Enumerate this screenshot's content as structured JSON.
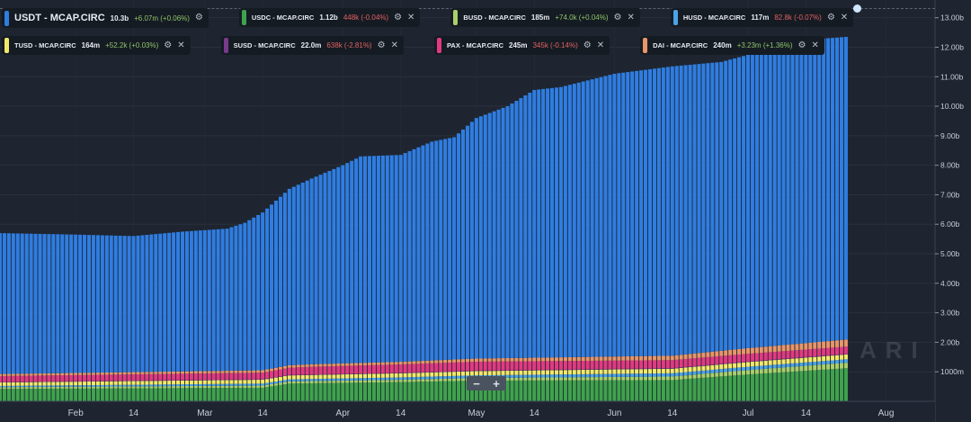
{
  "legend": [
    {
      "name": "USDT - MCAP.CIRC",
      "value": "10.3b",
      "change": "+6.07m (+0.06%)",
      "dir": "up",
      "color": "#2f7de1",
      "main": true
    },
    {
      "name": "USDC - MCAP.CIRC",
      "value": "1.12b",
      "change": "448k (-0.04%)",
      "dir": "down",
      "color": "#3fa34d"
    },
    {
      "name": "BUSD - MCAP.CIRC",
      "value": "185m",
      "change": "+74.0k (+0.04%)",
      "dir": "up",
      "color": "#a8d06b"
    },
    {
      "name": "HUSD - MCAP.CIRC",
      "value": "117m",
      "change": "82.8k (-0.07%)",
      "dir": "down",
      "color": "#4aa3e8"
    },
    {
      "name": "TUSD - MCAP.CIRC",
      "value": "164m",
      "change": "+52.2k (+0.03%)",
      "dir": "up",
      "color": "#f2e86b"
    },
    {
      "name": "SUSD - MCAP.CIRC",
      "value": "22.0m",
      "change": "638k (-2.81%)",
      "dir": "down",
      "color": "#7a3a8c"
    },
    {
      "name": "PAX - MCAP.CIRC",
      "value": "245m",
      "change": "345k (-0.14%)",
      "dir": "down",
      "color": "#e23a82"
    },
    {
      "name": "DAI - MCAP.CIRC",
      "value": "240m",
      "change": "+3.23m (+1.36%)",
      "dir": "up",
      "color": "#e8956a"
    }
  ],
  "icons": {
    "settings": "gear-icon",
    "close": "close-icon"
  },
  "zoom": {
    "minus": "−",
    "plus": "+"
  },
  "watermark": "ARI",
  "chart_data": {
    "type": "bar",
    "stacked": true,
    "x_range": [
      "2020-01-15",
      "2020-08-12"
    ],
    "x_ticks": [
      {
        "date": "2020-02-01",
        "label": "Feb"
      },
      {
        "date": "2020-02-14",
        "label": "14"
      },
      {
        "date": "2020-03-01",
        "label": "Mar"
      },
      {
        "date": "2020-03-14",
        "label": "14"
      },
      {
        "date": "2020-04-01",
        "label": "Apr"
      },
      {
        "date": "2020-04-14",
        "label": "14"
      },
      {
        "date": "2020-05-01",
        "label": "May"
      },
      {
        "date": "2020-05-14",
        "label": "14"
      },
      {
        "date": "2020-06-01",
        "label": "Jun"
      },
      {
        "date": "2020-06-14",
        "label": "14"
      },
      {
        "date": "2020-07-01",
        "label": "Jul"
      },
      {
        "date": "2020-07-14",
        "label": "14"
      },
      {
        "date": "2020-08-01",
        "label": "Aug"
      }
    ],
    "y_range": [
      0,
      13.6
    ],
    "y_unit": "billions",
    "y_ticks": [
      {
        "v": 1,
        "label": "1000m"
      },
      {
        "v": 2,
        "label": "2.00b"
      },
      {
        "v": 3,
        "label": "3.00b"
      },
      {
        "v": 4,
        "label": "4.00b"
      },
      {
        "v": 5,
        "label": "5.00b"
      },
      {
        "v": 6,
        "label": "6.00b"
      },
      {
        "v": 7,
        "label": "7.00b"
      },
      {
        "v": 8,
        "label": "8.00b"
      },
      {
        "v": 9,
        "label": "9.00b"
      },
      {
        "v": 10,
        "label": "10.00b"
      },
      {
        "v": 11,
        "label": "11.00b"
      },
      {
        "v": 12,
        "label": "12.00b"
      },
      {
        "v": 13,
        "label": "13.00b"
      }
    ],
    "series_order": [
      "USDC",
      "BUSD",
      "HUSD",
      "TUSD",
      "SUSD",
      "PAX",
      "DAI",
      "USDT"
    ],
    "stack_colors": {
      "USDC": "#3fa34d",
      "BUSD": "#a8d06b",
      "HUSD": "#4aa3e8",
      "TUSD": "#f2e86b",
      "SUSD": "#7a3a8c",
      "PAX": "#e23a82",
      "DAI": "#e8956a",
      "USDT": "#2f7de1"
    },
    "start_date": "2020-01-15",
    "end_date": "2020-07-23",
    "total_keyframes": [
      {
        "date": "2020-01-15",
        "v": 5.7
      },
      {
        "date": "2020-02-01",
        "v": 5.65
      },
      {
        "date": "2020-02-14",
        "v": 5.6
      },
      {
        "date": "2020-02-25",
        "v": 5.75
      },
      {
        "date": "2020-03-06",
        "v": 5.85
      },
      {
        "date": "2020-03-10",
        "v": 6.05
      },
      {
        "date": "2020-03-14",
        "v": 6.4
      },
      {
        "date": "2020-03-20",
        "v": 7.2
      },
      {
        "date": "2020-03-25",
        "v": 7.55
      },
      {
        "date": "2020-04-01",
        "v": 8.0
      },
      {
        "date": "2020-04-05",
        "v": 8.3
      },
      {
        "date": "2020-04-14",
        "v": 8.35
      },
      {
        "date": "2020-04-21",
        "v": 8.8
      },
      {
        "date": "2020-04-26",
        "v": 8.95
      },
      {
        "date": "2020-05-01",
        "v": 9.6
      },
      {
        "date": "2020-05-08",
        "v": 10.0
      },
      {
        "date": "2020-05-14",
        "v": 10.55
      },
      {
        "date": "2020-05-20",
        "v": 10.65
      },
      {
        "date": "2020-06-01",
        "v": 11.1
      },
      {
        "date": "2020-06-14",
        "v": 11.35
      },
      {
        "date": "2020-06-25",
        "v": 11.5
      },
      {
        "date": "2020-06-30",
        "v": 11.7
      },
      {
        "date": "2020-07-04",
        "v": 12.0
      },
      {
        "date": "2020-07-10",
        "v": 12.2
      },
      {
        "date": "2020-07-23",
        "v": 12.35
      }
    ],
    "others_keyframes": {
      "USDC": [
        {
          "date": "2020-01-15",
          "v": 0.42
        },
        {
          "date": "2020-03-14",
          "v": 0.46
        },
        {
          "date": "2020-03-20",
          "v": 0.6
        },
        {
          "date": "2020-04-14",
          "v": 0.65
        },
        {
          "date": "2020-05-01",
          "v": 0.7
        },
        {
          "date": "2020-06-14",
          "v": 0.72
        },
        {
          "date": "2020-06-30",
          "v": 0.9
        },
        {
          "date": "2020-07-23",
          "v": 1.12
        }
      ],
      "BUSD": [
        {
          "date": "2020-01-15",
          "v": 0.06
        },
        {
          "date": "2020-04-14",
          "v": 0.08
        },
        {
          "date": "2020-06-14",
          "v": 0.12
        },
        {
          "date": "2020-07-23",
          "v": 0.185
        }
      ],
      "HUSD": [
        {
          "date": "2020-01-15",
          "v": 0.04
        },
        {
          "date": "2020-04-14",
          "v": 0.08
        },
        {
          "date": "2020-06-14",
          "v": 0.11
        },
        {
          "date": "2020-07-23",
          "v": 0.117
        }
      ],
      "TUSD": [
        {
          "date": "2020-01-15",
          "v": 0.12
        },
        {
          "date": "2020-04-14",
          "v": 0.14
        },
        {
          "date": "2020-07-23",
          "v": 0.164
        }
      ],
      "SUSD": [
        {
          "date": "2020-01-15",
          "v": 0.015
        },
        {
          "date": "2020-07-23",
          "v": 0.022
        }
      ],
      "PAX": [
        {
          "date": "2020-01-15",
          "v": 0.2
        },
        {
          "date": "2020-03-14",
          "v": 0.22
        },
        {
          "date": "2020-03-25",
          "v": 0.26
        },
        {
          "date": "2020-05-01",
          "v": 0.3
        },
        {
          "date": "2020-07-23",
          "v": 0.245
        }
      ],
      "DAI": [
        {
          "date": "2020-01-15",
          "v": 0.07
        },
        {
          "date": "2020-04-14",
          "v": 0.09
        },
        {
          "date": "2020-06-14",
          "v": 0.15
        },
        {
          "date": "2020-07-23",
          "v": 0.24
        }
      ]
    }
  }
}
